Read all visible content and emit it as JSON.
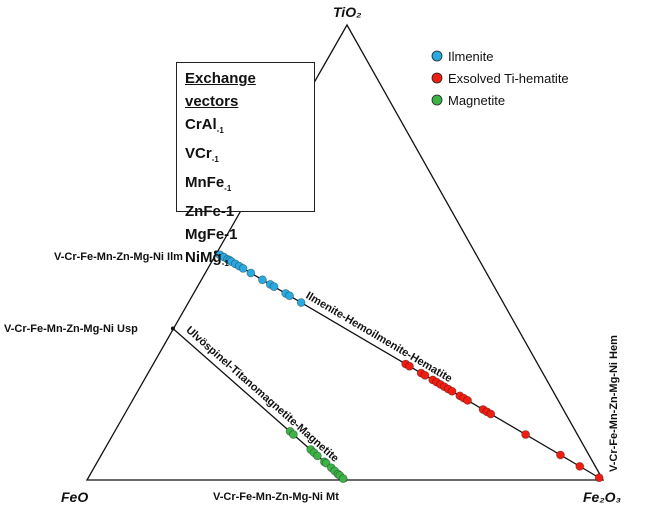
{
  "chart_data": {
    "type": "scatter",
    "subtype": "ternary",
    "vertices": {
      "top": "TiO2",
      "left": "FeO",
      "right": "Fe2O3"
    },
    "vertex_labels": {
      "top": "TiO₂",
      "left": "FeO",
      "right": "Fe₂O₃"
    },
    "endmember_labels": {
      "ilm": "V-Cr-Fe-Mn-Zn-Mg-Ni Ilm",
      "usp": "V-Cr-Fe-Mn-Zn-Mg-Ni Usp",
      "mt": "V-Cr-Fe-Mn-Zn-Mg-Ni Mt",
      "hem": "V-Cr-Fe-Mn-Zn-Mg-Ni Hem"
    },
    "tie_lines": [
      {
        "label": "Ilmenite-Hemoilmenite-Hematite",
        "from": [
          0.5,
          0.5,
          0
        ],
        "to": [
          0,
          0,
          1
        ]
      },
      {
        "label": "Ulvöspinel-Titanomagnetite-Magnetite",
        "from": [
          0.333,
          0.667,
          0
        ],
        "to": [
          0,
          0.5,
          0.5
        ]
      }
    ],
    "component_order": [
      "TiO2",
      "FeO",
      "Fe2O3"
    ],
    "legend_position": "top-right",
    "series": [
      {
        "name": "Ilmenite",
        "color": "#2aa9df",
        "points": [
          [
            0.495,
            0.495,
            0.01
          ],
          [
            0.49,
            0.49,
            0.02
          ],
          [
            0.485,
            0.485,
            0.03
          ],
          [
            0.483,
            0.483,
            0.035
          ],
          [
            0.48,
            0.48,
            0.04
          ],
          [
            0.475,
            0.475,
            0.05
          ],
          [
            0.47,
            0.47,
            0.06
          ],
          [
            0.465,
            0.465,
            0.07
          ],
          [
            0.455,
            0.455,
            0.09
          ],
          [
            0.44,
            0.44,
            0.12
          ],
          [
            0.43,
            0.43,
            0.14
          ],
          [
            0.425,
            0.425,
            0.15
          ],
          [
            0.41,
            0.41,
            0.18
          ],
          [
            0.405,
            0.405,
            0.19
          ],
          [
            0.39,
            0.39,
            0.22
          ]
        ]
      },
      {
        "name": "Exsolved Ti-hematite",
        "color": "#f01e12",
        "points": [
          [
            0.255,
            0.255,
            0.49
          ],
          [
            0.25,
            0.25,
            0.5
          ],
          [
            0.235,
            0.235,
            0.53
          ],
          [
            0.23,
            0.23,
            0.54
          ],
          [
            0.22,
            0.22,
            0.56
          ],
          [
            0.215,
            0.215,
            0.57
          ],
          [
            0.21,
            0.21,
            0.58
          ],
          [
            0.205,
            0.205,
            0.59
          ],
          [
            0.2,
            0.2,
            0.6
          ],
          [
            0.195,
            0.195,
            0.61
          ],
          [
            0.185,
            0.185,
            0.63
          ],
          [
            0.18,
            0.18,
            0.64
          ],
          [
            0.175,
            0.175,
            0.65
          ],
          [
            0.155,
            0.155,
            0.69
          ],
          [
            0.15,
            0.15,
            0.7
          ],
          [
            0.145,
            0.145,
            0.71
          ],
          [
            0.1,
            0.1,
            0.8
          ],
          [
            0.055,
            0.055,
            0.89
          ],
          [
            0.03,
            0.03,
            0.94
          ],
          [
            0.005,
            0.005,
            0.99
          ]
        ]
      },
      {
        "name": "Magnetite",
        "color": "#3db347",
        "points": [
          [
            0.107,
            0.553,
            0.34
          ],
          [
            0.1,
            0.55,
            0.35
          ],
          [
            0.067,
            0.533,
            0.4
          ],
          [
            0.06,
            0.53,
            0.41
          ],
          [
            0.053,
            0.527,
            0.42
          ],
          [
            0.04,
            0.52,
            0.44
          ],
          [
            0.037,
            0.518,
            0.445
          ],
          [
            0.027,
            0.513,
            0.46
          ],
          [
            0.02,
            0.51,
            0.47
          ],
          [
            0.013,
            0.507,
            0.48
          ],
          [
            0.01,
            0.505,
            0.485
          ],
          [
            0.003,
            0.502,
            0.495
          ]
        ]
      }
    ]
  },
  "exchange_box": {
    "title": "Exchange vectors",
    "items": [
      {
        "base": "CrAl",
        "sub": "-1"
      },
      {
        "base": "VCr",
        "sub": "-1"
      },
      {
        "base": "MnFe",
        "sub": "-1"
      },
      {
        "base": "ZnFe-1",
        "sub": ""
      },
      {
        "base": "MgFe-1",
        "sub": ""
      },
      {
        "base": "NiMg",
        "sub": "-1"
      }
    ]
  }
}
